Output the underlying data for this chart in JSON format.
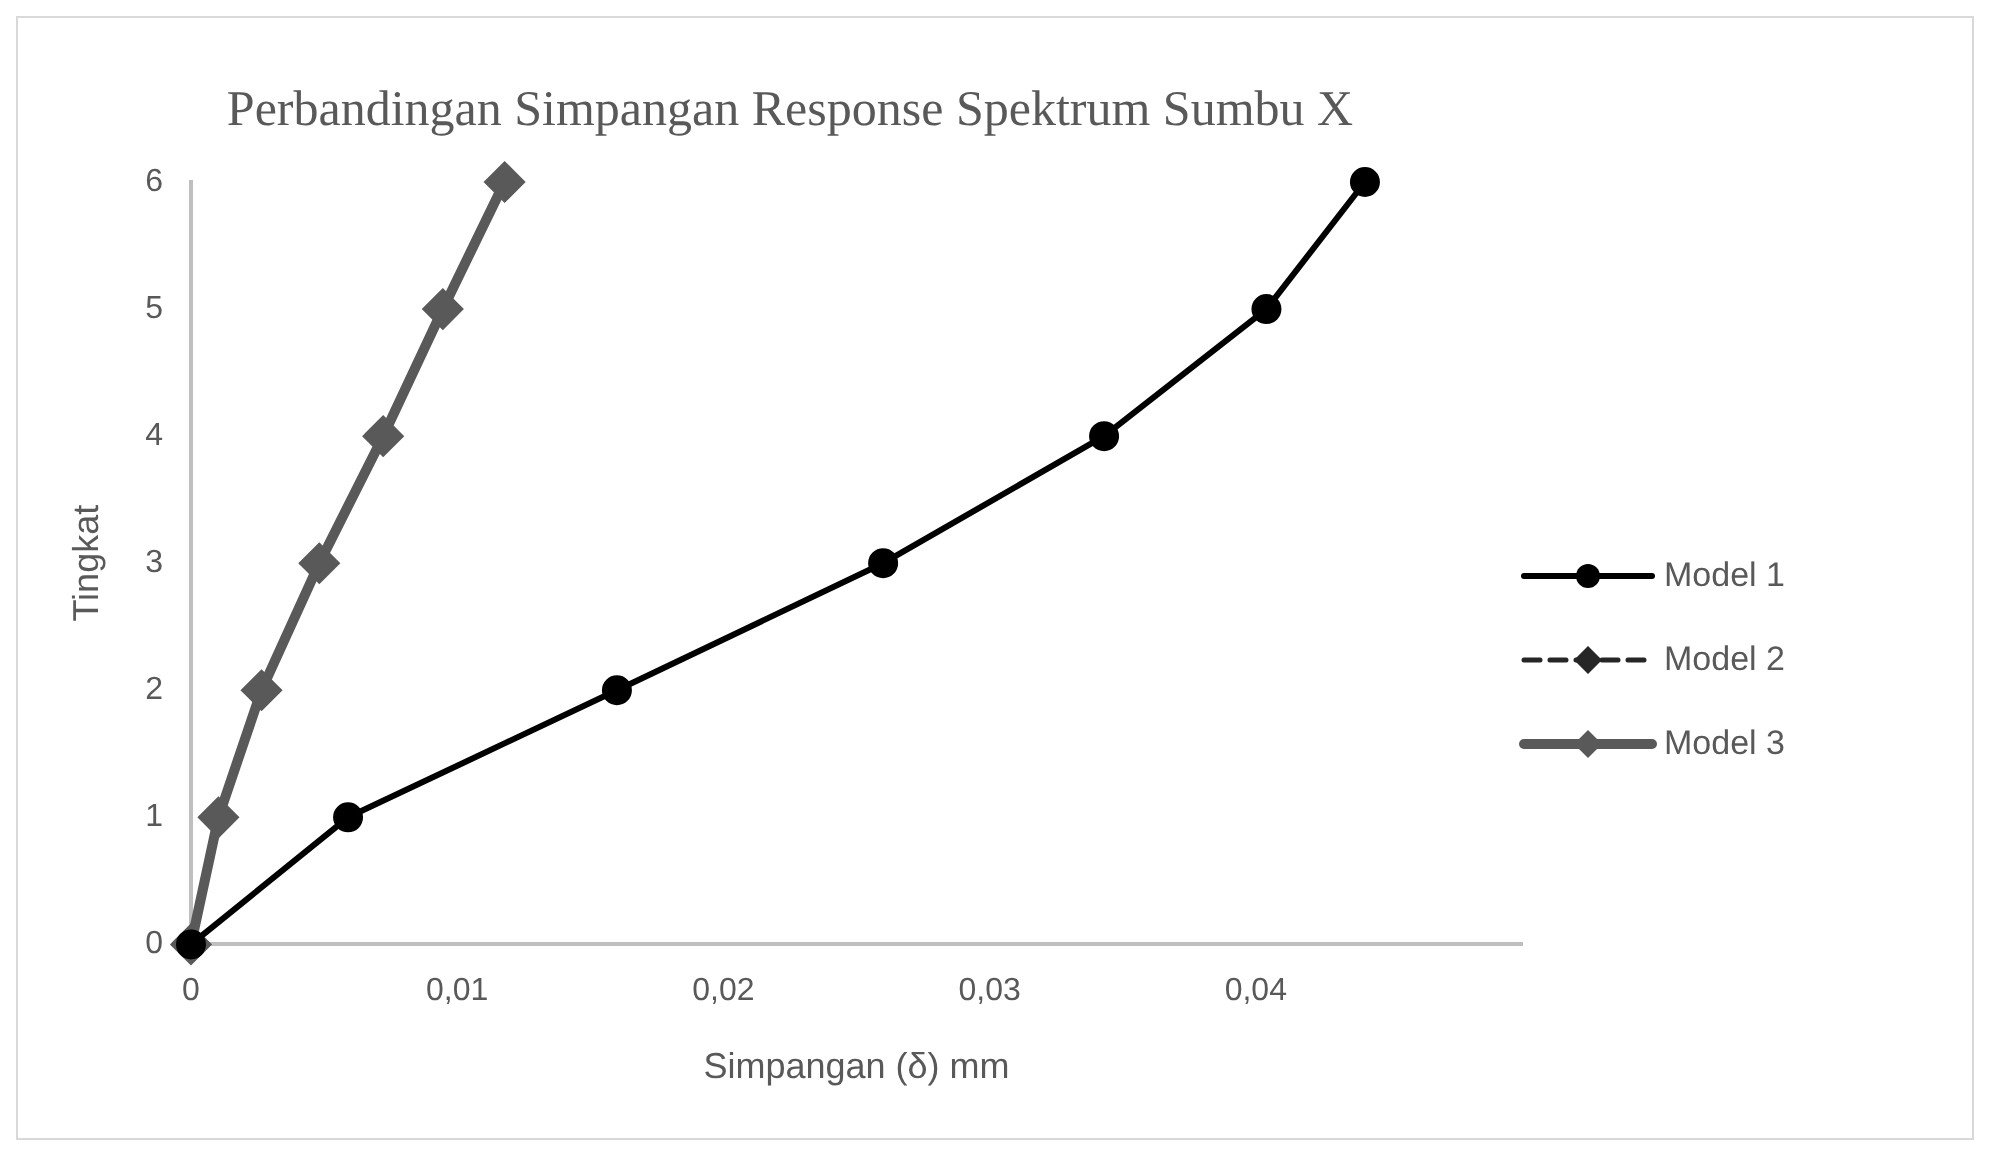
{
  "chart_data": {
    "type": "line",
    "title": "Perbandingan Simpangan Response Spektrum Sumbu X",
    "xlabel": "Simpangan (δ) mm",
    "ylabel": "Tingkat",
    "x": [
      0,
      0.0059,
      0.016,
      0.026,
      0.0343,
      0.0404,
      0.0441
    ],
    "series": [
      {
        "name": "Model 1",
        "color": "#000000",
        "marker": "circle",
        "line_style": "solid",
        "values": [
          0,
          1,
          2,
          3,
          4,
          5,
          6
        ]
      },
      {
        "name": "Model 2",
        "color": "#262626",
        "marker": "diamond",
        "line_style": "dashed",
        "values": [
          null,
          null,
          null,
          null,
          null,
          null,
          null
        ]
      },
      {
        "name": "Model 3",
        "color": "#595959",
        "marker": "diamond",
        "line_style": "solid",
        "x": [
          0,
          0.00103,
          0.00265,
          0.00482,
          0.00722,
          0.00946,
          0.01178
        ],
        "values": [
          0,
          1,
          2,
          3,
          4,
          5,
          6
        ]
      }
    ],
    "xlim": [
      0,
      0.05
    ],
    "xticks": [
      0,
      {
        "value": 0.01,
        "label": "0,01"
      },
      {
        "value": 0.02,
        "label": "0,02"
      },
      {
        "value": 0.03,
        "label": "0,03"
      },
      {
        "value": 0.04,
        "label": "0,04"
      }
    ],
    "ylim": [
      0,
      6
    ],
    "yticks": [
      0,
      1,
      2,
      3,
      4,
      5,
      6
    ],
    "grid": false,
    "legend": "right"
  }
}
